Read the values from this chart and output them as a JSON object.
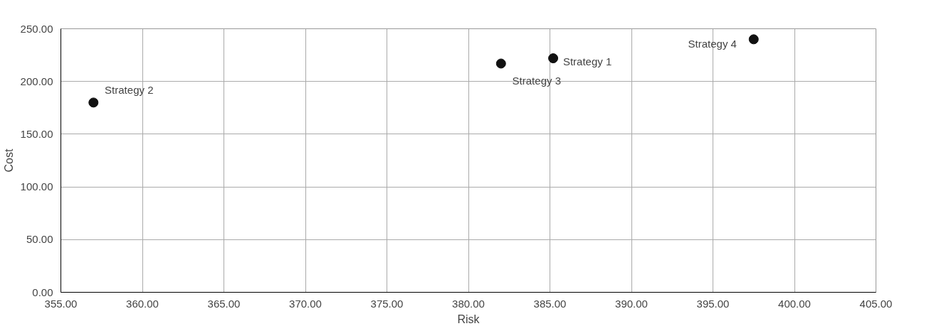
{
  "chart_data": {
    "type": "scatter",
    "xlabel": "Risk",
    "ylabel": "Cost",
    "x": [
      357.0,
      382.0,
      385.2,
      397.5
    ],
    "series": [
      {
        "color": "#111111",
        "values": [
          180,
          217,
          222,
          240
        ]
      }
    ],
    "marker": "circle",
    "grid": true,
    "xlim": [
      355,
      405
    ],
    "xticks": [
      {
        "value": 355,
        "label": "355.00"
      },
      {
        "value": 360,
        "label": "360.00"
      },
      {
        "value": 365,
        "label": "365.00"
      },
      {
        "value": 370,
        "label": "370.00"
      },
      {
        "value": 375,
        "label": "375.00"
      },
      {
        "value": 380,
        "label": "380.00"
      },
      {
        "value": 385,
        "label": "385.00"
      },
      {
        "value": 390,
        "label": "390.00"
      },
      {
        "value": 395,
        "label": "395.00"
      },
      {
        "value": 400,
        "label": "400.00"
      },
      {
        "value": 405,
        "label": "405.00"
      }
    ],
    "ylim": [
      0,
      250
    ],
    "yticks": [
      {
        "value": 0,
        "label": "0.00"
      },
      {
        "value": 50,
        "label": "50.00"
      },
      {
        "value": 100,
        "label": "100.00"
      },
      {
        "value": 150,
        "label": "150.00"
      },
      {
        "value": 200,
        "label": "200.00"
      },
      {
        "value": 250,
        "label": "250.00"
      }
    ],
    "annotations": [
      {
        "text": "Strategy 2",
        "x": 357.0,
        "y": 180
      },
      {
        "text": "Strategy 1",
        "x": 385.2,
        "y": 222
      },
      {
        "text": "Strategy 3",
        "x": 382.0,
        "y": 217
      },
      {
        "text": "Strategy 4",
        "x": 397.5,
        "y": 240
      }
    ]
  }
}
